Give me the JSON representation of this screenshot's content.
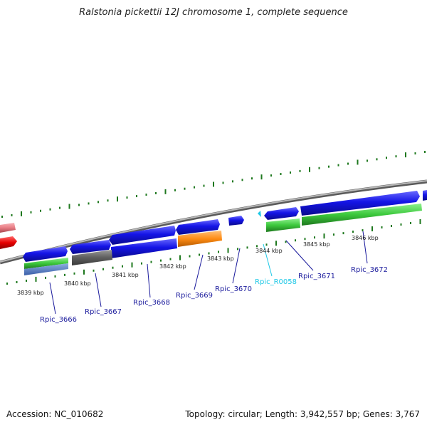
{
  "title": "Ralstonia pickettii 12J chromosome 1, complete sequence",
  "footer": {
    "accession": "Accession: NC_010682",
    "topology": "Topology: circular; Length: 3,942,557 bp; Genes: 3,767"
  },
  "colors": {
    "backbone": "#8a8a8a",
    "forward_cds": "#1414e6",
    "reverse_cds": "#1414e6",
    "gene_green": "#3cc83c",
    "pseudo_gray": "#5e5e5e",
    "orange": "#ff8c14",
    "rna_cyan": "#1ec8e6",
    "red": "#e60000",
    "pink": "#e87c84",
    "tick_green": "#1e781e",
    "label_blue": "#1a1a9c",
    "label_cyan": "#1ec8e6"
  },
  "kbp_labels": [
    "3839 kbp",
    "3840 kbp",
    "3841 kbp",
    "3842 kbp",
    "3843 kbp",
    "3844 kbp",
    "3845 kbp",
    "3846 kbp"
  ],
  "gene_labels": [
    "Rpic_3666",
    "Rpic_3667",
    "Rpic_3668",
    "Rpic_3669",
    "Rpic_3670",
    "Rpic_R0058",
    "Rpic_3671",
    "Rpic_3672"
  ]
}
